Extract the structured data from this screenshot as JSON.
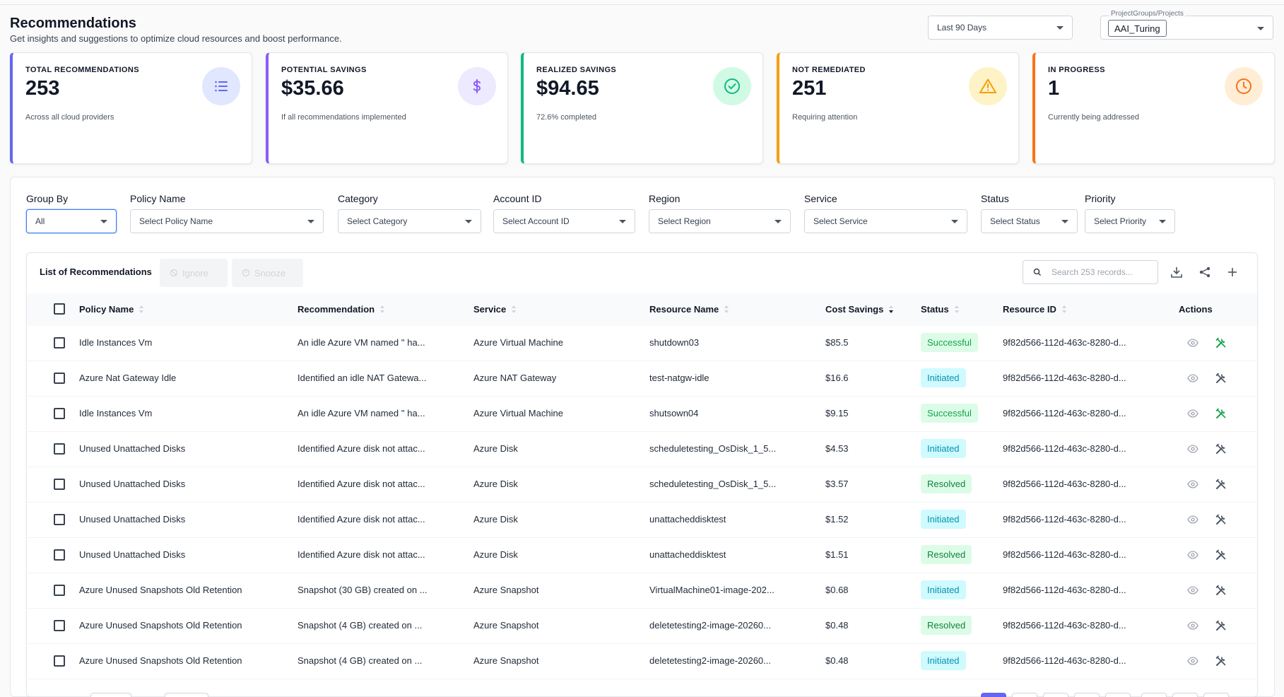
{
  "header": {
    "title": "Recommendations",
    "subtitle": "Get insights and suggestions to optimize cloud resources and boost performance.",
    "date_range": "Last 90 Days",
    "project_label": "ProjectGroups/Projects",
    "project_value": "AAI_Turing"
  },
  "cards": [
    {
      "label": "TOTAL RECOMMENDATIONS",
      "value": "253",
      "sub": "Across all cloud providers",
      "icon": "list-icon",
      "accent": "#6366f1"
    },
    {
      "label": "POTENTIAL SAVINGS",
      "value": "$35.66",
      "sub": "If all recommendations implemented",
      "icon": "dollar-icon",
      "accent": "#8b5cf6"
    },
    {
      "label": "REALIZED SAVINGS",
      "value": "$94.65",
      "sub": "72.6% completed",
      "icon": "check-circle-icon",
      "accent": "#10b981"
    },
    {
      "label": "NOT REMEDIATED",
      "value": "251",
      "sub": "Requiring attention",
      "icon": "warning-icon",
      "accent": "#f59e0b"
    },
    {
      "label": "IN PROGRESS",
      "value": "1",
      "sub": "Currently being addressed",
      "icon": "clock-icon",
      "accent": "#f97316"
    }
  ],
  "filters": [
    {
      "label": "Group By",
      "value": "All"
    },
    {
      "label": "Policy Name",
      "value": "Select Policy Name"
    },
    {
      "label": "Category",
      "value": "Select Category"
    },
    {
      "label": "Account ID",
      "value": "Select Account ID"
    },
    {
      "label": "Region",
      "value": "Select Region"
    },
    {
      "label": "Service",
      "value": "Select Service"
    },
    {
      "label": "Status",
      "value": "Select Status"
    },
    {
      "label": "Priority",
      "value": "Select Priority"
    }
  ],
  "table": {
    "title": "List of Recommendations",
    "ignore_label": "Ignore",
    "snooze_label": "Snooze",
    "search_placeholder": "Search 253 records...",
    "columns": [
      "Policy Name",
      "Recommendation",
      "Service",
      "Resource Name",
      "Cost Savings",
      "Status",
      "Resource ID",
      "Actions"
    ],
    "rows": [
      {
        "policy": "Idle Instances Vm",
        "recommendation": "An idle Azure VM named '' ha...",
        "service": "Azure Virtual Machine",
        "resource": "shutdown03",
        "savings": "$85.5",
        "status": "Successful",
        "resource_id": "9f82d566-112d-463c-8280-d..."
      },
      {
        "policy": "Azure Nat Gateway Idle",
        "recommendation": "Identified an idle NAT Gatewa...",
        "service": "Azure NAT Gateway",
        "resource": "test-natgw-idle",
        "savings": "$16.6",
        "status": "Initiated",
        "resource_id": "9f82d566-112d-463c-8280-d..."
      },
      {
        "policy": "Idle Instances Vm",
        "recommendation": "An idle Azure VM named '' ha...",
        "service": "Azure Virtual Machine",
        "resource": "shutsown04",
        "savings": "$9.15",
        "status": "Successful",
        "resource_id": "9f82d566-112d-463c-8280-d..."
      },
      {
        "policy": "Unused Unattached Disks",
        "recommendation": "Identified Azure disk not attac...",
        "service": "Azure Disk",
        "resource": "scheduletesting_OsDisk_1_5...",
        "savings": "$4.53",
        "status": "Initiated",
        "resource_id": "9f82d566-112d-463c-8280-d..."
      },
      {
        "policy": "Unused Unattached Disks",
        "recommendation": "Identified Azure disk not attac...",
        "service": "Azure Disk",
        "resource": "scheduletesting_OsDisk_1_5...",
        "savings": "$3.57",
        "status": "Resolved",
        "resource_id": "9f82d566-112d-463c-8280-d..."
      },
      {
        "policy": "Unused Unattached Disks",
        "recommendation": "Identified Azure disk not attac...",
        "service": "Azure Disk",
        "resource": "unattacheddisktest",
        "savings": "$1.52",
        "status": "Initiated",
        "resource_id": "9f82d566-112d-463c-8280-d..."
      },
      {
        "policy": "Unused Unattached Disks",
        "recommendation": "Identified Azure disk not attac...",
        "service": "Azure Disk",
        "resource": "unattacheddisktest",
        "savings": "$1.51",
        "status": "Resolved",
        "resource_id": "9f82d566-112d-463c-8280-d..."
      },
      {
        "policy": "Azure Unused Snapshots Old Retention",
        "recommendation": "Snapshot (30 GB) created on ...",
        "service": "Azure Snapshot",
        "resource": "VirtualMachine01-image-202...",
        "savings": "$0.68",
        "status": "Initiated",
        "resource_id": "9f82d566-112d-463c-8280-d..."
      },
      {
        "policy": "Azure Unused Snapshots Old Retention",
        "recommendation": "Snapshot (4 GB) created on ...",
        "service": "Azure Snapshot",
        "resource": "deletetesting2-image-20260...",
        "savings": "$0.48",
        "status": "Resolved",
        "resource_id": "9f82d566-112d-463c-8280-d..."
      },
      {
        "policy": "Azure Unused Snapshots Old Retention",
        "recommendation": "Snapshot (4 GB) created on ...",
        "service": "Azure Snapshot",
        "resource": "deletetesting2-image-20260...",
        "savings": "$0.48",
        "status": "Initiated",
        "resource_id": "9f82d566-112d-463c-8280-d..."
      }
    ]
  }
}
